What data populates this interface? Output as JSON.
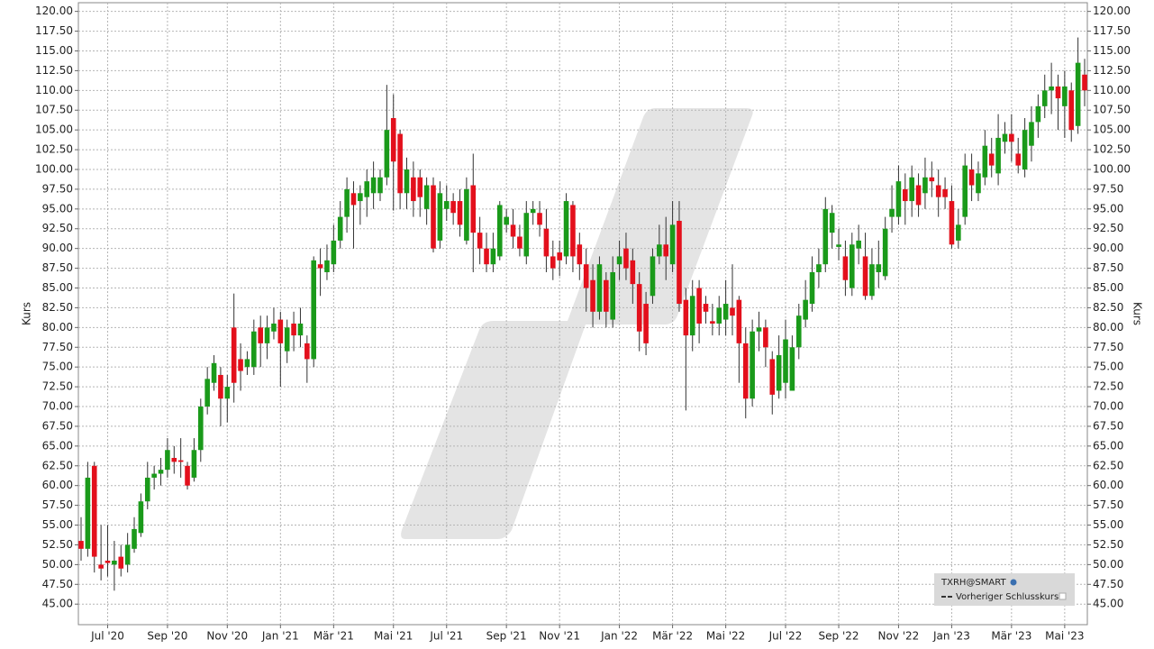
{
  "chart_data": {
    "type": "candlestick",
    "y_label": "Kurs",
    "legend": "bottom-right",
    "grid": true,
    "reference_line": {
      "name": "Vorheriger Schlusskurs"
    },
    "categories": [
      null,
      null,
      null,
      null,
      "Jul '20",
      null,
      null,
      null,
      null,
      null,
      null,
      null,
      null,
      "Sep '20",
      null,
      null,
      null,
      null,
      null,
      null,
      null,
      null,
      "Nov '20",
      null,
      null,
      null,
      null,
      null,
      null,
      null,
      "Jan '21",
      null,
      null,
      null,
      null,
      null,
      null,
      null,
      "Mär '21",
      null,
      null,
      null,
      null,
      null,
      null,
      null,
      null,
      "Mai '21",
      null,
      null,
      null,
      null,
      null,
      null,
      null,
      "Jul '21",
      null,
      null,
      null,
      null,
      null,
      null,
      null,
      null,
      "Sep '21",
      null,
      null,
      null,
      null,
      null,
      null,
      null,
      "Nov '21",
      null,
      null,
      null,
      null,
      null,
      null,
      null,
      null,
      "Jan '22",
      null,
      null,
      null,
      null,
      null,
      null,
      null,
      "Mär '22",
      null,
      null,
      null,
      null,
      null,
      null,
      null,
      "Mai '22",
      null,
      null,
      null,
      null,
      null,
      null,
      null,
      null,
      "Jul '22",
      null,
      null,
      null,
      null,
      null,
      null,
      null,
      "Sep '22",
      null,
      null,
      null,
      null,
      null,
      null,
      null,
      null,
      "Nov '22",
      null,
      null,
      null,
      null,
      null,
      null,
      null,
      "Jan '23",
      null,
      null,
      null,
      null,
      null,
      null,
      null,
      null,
      "Mär '23",
      null,
      null,
      null,
      null,
      null,
      null,
      null,
      "Mai '23",
      null,
      null,
      null
    ],
    "series": [
      {
        "name": "TXRH@SMART",
        "up_color": "#1a9a1a",
        "down_color": "#e3101c",
        "open": [
          53,
          52,
          62.5,
          50,
          50.5,
          50,
          51,
          50,
          52,
          54,
          58,
          61,
          61.5,
          62,
          63.5,
          63.2,
          62.5,
          61,
          64.5,
          70,
          73,
          74,
          71,
          80,
          76,
          75,
          75,
          80,
          78,
          79.5,
          81,
          77,
          80.5,
          79,
          78,
          76,
          88,
          87,
          88,
          91,
          94,
          97,
          96,
          96.5,
          97,
          97,
          99,
          106.5,
          104.5,
          97,
          99,
          99,
          95,
          98,
          91,
          95,
          96,
          96,
          91,
          98,
          92,
          90,
          88,
          89,
          93,
          93,
          91.5,
          89,
          94.5,
          94.5,
          92.5,
          89,
          89.5,
          89,
          95.5,
          90.5,
          88,
          86,
          82,
          86,
          81,
          88,
          90,
          88.5,
          85.5,
          83,
          84,
          89,
          90.5,
          88,
          93.5,
          83.5,
          79,
          85,
          83,
          80.8,
          80.5,
          81,
          82.5,
          83.5,
          78,
          71,
          79.5,
          80,
          76,
          72,
          73,
          72,
          77.5,
          81,
          83,
          87,
          88,
          92,
          90.2,
          89,
          85,
          90,
          89,
          84,
          87,
          86.5,
          94,
          94,
          97.5,
          96,
          98,
          97,
          99,
          98,
          97.5,
          96,
          91,
          94,
          100,
          97,
          99,
          102,
          99.5,
          103.5,
          104.5,
          102,
          100,
          103,
          106,
          108,
          110,
          110.5,
          108,
          110,
          105.5,
          112
        ],
        "high": [
          56,
          63,
          63,
          55,
          55,
          53,
          52.5,
          54,
          56,
          59,
          63,
          62.5,
          63.5,
          66,
          65,
          66,
          63,
          66,
          71,
          75,
          76.5,
          75,
          74,
          84.3,
          78,
          77,
          81,
          81.5,
          81.5,
          82.5,
          82,
          81,
          82,
          82.5,
          79,
          89,
          90,
          90.5,
          93,
          96,
          99,
          98.5,
          98,
          100,
          101,
          100,
          110.7,
          109.5,
          105,
          101.5,
          101,
          100,
          99,
          99,
          98.5,
          98,
          97,
          97.5,
          99,
          102,
          94,
          92,
          92,
          96,
          95,
          95,
          93,
          96,
          96,
          96,
          95,
          91,
          91,
          97,
          96,
          92,
          90,
          88,
          89,
          87,
          89,
          91,
          92,
          90,
          87,
          84.5,
          90,
          93,
          94,
          96,
          96,
          85,
          86,
          86,
          84,
          83,
          84,
          86,
          88,
          84,
          80,
          81,
          82,
          81,
          77,
          79,
          81,
          79,
          83,
          86,
          89,
          90,
          96.5,
          95.5,
          92.5,
          91,
          92,
          93,
          92,
          90,
          91,
          94,
          98,
          100.5,
          99.5,
          100.5,
          99.5,
          101.5,
          101,
          100,
          99,
          98,
          95,
          102,
          102,
          101,
          105,
          104,
          107,
          106,
          107,
          104,
          106.5,
          108,
          109.5,
          112,
          113.5,
          112,
          112.5,
          111,
          116.7,
          114
        ],
        "low": [
          50.5,
          51,
          49,
          48,
          48.5,
          46.7,
          48.5,
          49,
          51.5,
          53.5,
          57,
          59.5,
          60,
          61,
          61.5,
          61,
          59.5,
          60.5,
          63,
          69,
          72,
          67.5,
          68,
          70.5,
          72,
          74,
          74,
          75,
          76,
          78.5,
          72.5,
          75.5,
          77,
          77.5,
          73,
          75,
          84,
          86,
          87,
          90,
          92,
          90,
          93,
          94,
          95,
          96,
          98,
          94.8,
          95,
          95,
          94,
          94,
          93,
          89.5,
          90,
          93.5,
          93,
          91.5,
          90.5,
          87,
          88,
          87,
          87,
          88.5,
          92,
          90,
          89,
          88,
          93,
          91.5,
          87,
          86,
          86.5,
          88,
          87,
          86,
          82,
          80,
          81,
          80,
          80,
          86,
          86,
          83,
          77,
          76.5,
          83,
          88,
          86,
          87,
          82,
          69.5,
          77,
          78,
          80.5,
          79,
          79,
          79,
          79,
          73,
          68.5,
          70,
          77,
          75,
          69,
          71,
          71,
          72,
          76,
          80,
          82,
          85,
          87,
          90,
          88.5,
          84,
          84,
          88,
          83.5,
          83.5,
          85,
          86,
          92,
          93,
          93,
          94,
          94,
          95,
          96.5,
          94,
          95,
          90,
          90,
          93,
          96,
          96,
          98,
          99,
          98,
          102,
          101,
          99.5,
          99,
          101,
          104,
          106.5,
          107,
          105,
          104,
          103.5,
          104.5,
          108
        ],
        "close": [
          52,
          61,
          51,
          49.5,
          50.2,
          50.5,
          49.5,
          52.5,
          54.5,
          58,
          61,
          61.5,
          62,
          64.5,
          63,
          63,
          60,
          64.5,
          70,
          73.5,
          75.5,
          71,
          72.5,
          73,
          74.5,
          76,
          79.5,
          78,
          80,
          80.5,
          78,
          80,
          79,
          80.5,
          76,
          88.5,
          87.5,
          88.5,
          91,
          94,
          97.5,
          95.5,
          97,
          98.5,
          99,
          99,
          105,
          101,
          97,
          100,
          96,
          96.5,
          98,
          90,
          97,
          96,
          94.5,
          93,
          97.5,
          92,
          90,
          88,
          90,
          95.5,
          94,
          91.5,
          90,
          94.5,
          95,
          93,
          89,
          87.5,
          88.5,
          96,
          89,
          88,
          85,
          82,
          88,
          82,
          87,
          89,
          87.5,
          85.5,
          79.5,
          78,
          89,
          90.5,
          89,
          93,
          83,
          79,
          84,
          80.5,
          82,
          80.5,
          82.5,
          83,
          81.5,
          78,
          71,
          79.5,
          80,
          77.5,
          71.5,
          76.5,
          78.5,
          77.5,
          81.5,
          83.5,
          87,
          88,
          95,
          94.5,
          90.5,
          86,
          90.5,
          91,
          84,
          88,
          88,
          92.5,
          95,
          98.5,
          96,
          99,
          95.5,
          99,
          98.5,
          96.5,
          96.5,
          90.5,
          93,
          100.5,
          98,
          99.5,
          103,
          100.5,
          104,
          104.5,
          103.5,
          100.5,
          105,
          106,
          108,
          110,
          110.5,
          109,
          110.5,
          105,
          113.5,
          110
        ]
      }
    ],
    "ylim": [
      42.4,
      121.1
    ],
    "yticks": [
      {
        "value": 45,
        "label": "45.00"
      },
      {
        "value": 47.5,
        "label": "47.50"
      },
      {
        "value": 50,
        "label": "50.00"
      },
      {
        "value": 52.5,
        "label": "52.50"
      },
      {
        "value": 55,
        "label": "55.00"
      },
      {
        "value": 57.5,
        "label": "57.50"
      },
      {
        "value": 60,
        "label": "60.00"
      },
      {
        "value": 62.5,
        "label": "62.50"
      },
      {
        "value": 65,
        "label": "65.00"
      },
      {
        "value": 67.5,
        "label": "67.50"
      },
      {
        "value": 70,
        "label": "70.00"
      },
      {
        "value": 72.5,
        "label": "72.50"
      },
      {
        "value": 75,
        "label": "75.00"
      },
      {
        "value": 77.5,
        "label": "77.50"
      },
      {
        "value": 80,
        "label": "80.00"
      },
      {
        "value": 82.5,
        "label": "82.50"
      },
      {
        "value": 85,
        "label": "85.00"
      },
      {
        "value": 87.5,
        "label": "87.50"
      },
      {
        "value": 90,
        "label": "90.00"
      },
      {
        "value": 92.5,
        "label": "92.50"
      },
      {
        "value": 95,
        "label": "95.00"
      },
      {
        "value": 97.5,
        "label": "97.50"
      },
      {
        "value": 100,
        "label": "100.00"
      },
      {
        "value": 102.5,
        "label": "102.50"
      },
      {
        "value": 105,
        "label": "105.00"
      },
      {
        "value": 107.5,
        "label": "107.50"
      },
      {
        "value": 110,
        "label": "110.00"
      },
      {
        "value": 112.5,
        "label": "112.50"
      },
      {
        "value": 115,
        "label": "115.00"
      },
      {
        "value": 117.5,
        "label": "117.50"
      },
      {
        "value": 120,
        "label": "120.00"
      }
    ]
  }
}
